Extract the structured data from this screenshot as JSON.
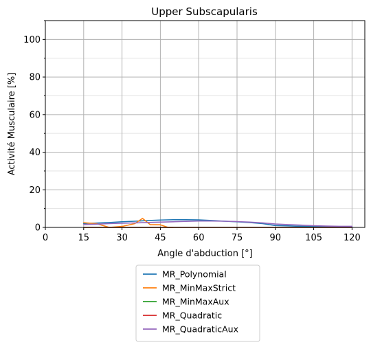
{
  "chart_data": {
    "type": "line",
    "title": "Upper Subscapularis",
    "xlabel": "Angle d'abduction [°]",
    "ylabel": "Activité Musculaire [%]",
    "xlim": [
      0,
      125
    ],
    "ylim": [
      0,
      110
    ],
    "xticks": [
      0,
      15,
      30,
      45,
      60,
      75,
      90,
      105,
      120
    ],
    "yticks": [
      0,
      20,
      40,
      60,
      80,
      100
    ],
    "yminor": [
      10,
      30,
      50,
      70,
      90,
      110
    ],
    "grid": true,
    "legend_position": "below",
    "series": [
      {
        "name": "MR_Polynomial",
        "color": "#1f77b4",
        "x": [
          15,
          20,
          25,
          30,
          35,
          40,
          45,
          50,
          55,
          60,
          65,
          70,
          75,
          80,
          85,
          90,
          95,
          100,
          105,
          110,
          115,
          120
        ],
        "y": [
          2.1,
          2.3,
          2.6,
          3.0,
          3.3,
          3.6,
          3.9,
          4.1,
          4.1,
          4.0,
          3.7,
          3.3,
          3.0,
          2.6,
          2.0,
          1.0,
          0.8,
          0.6,
          0.5,
          0.4,
          0.3,
          0.3
        ]
      },
      {
        "name": "MR_MinMaxStrict",
        "color": "#ff7f0e",
        "x": [
          15,
          20,
          25,
          30,
          35,
          38,
          41,
          45,
          48,
          50
        ],
        "y": [
          2.5,
          2.0,
          0.0,
          0.5,
          2.0,
          4.8,
          1.5,
          1.4,
          0.0,
          0.0
        ]
      },
      {
        "name": "MR_MinMaxAux",
        "color": "#2ca02c",
        "x": [
          15,
          30,
          45,
          60,
          75,
          90,
          105,
          120
        ],
        "y": [
          0,
          0,
          0,
          0,
          0,
          0,
          0,
          0
        ]
      },
      {
        "name": "MR_Quadratic",
        "color": "#d62728",
        "x": [
          15,
          30,
          45,
          60,
          75,
          90,
          105,
          120
        ],
        "y": [
          0,
          0,
          0,
          0,
          0,
          0,
          0,
          0
        ]
      },
      {
        "name": "MR_QuadraticAux",
        "color": "#9467bd",
        "x": [
          15,
          20,
          25,
          30,
          35,
          40,
          45,
          50,
          55,
          60,
          65,
          70,
          75,
          80,
          85,
          90,
          95,
          100,
          105,
          110,
          115,
          120
        ],
        "y": [
          1.5,
          1.7,
          2.0,
          2.2,
          2.4,
          2.6,
          2.8,
          3.0,
          3.2,
          3.4,
          3.4,
          3.3,
          3.1,
          2.8,
          2.4,
          1.8,
          1.5,
          1.2,
          0.9,
          0.7,
          0.6,
          0.6
        ]
      }
    ]
  }
}
